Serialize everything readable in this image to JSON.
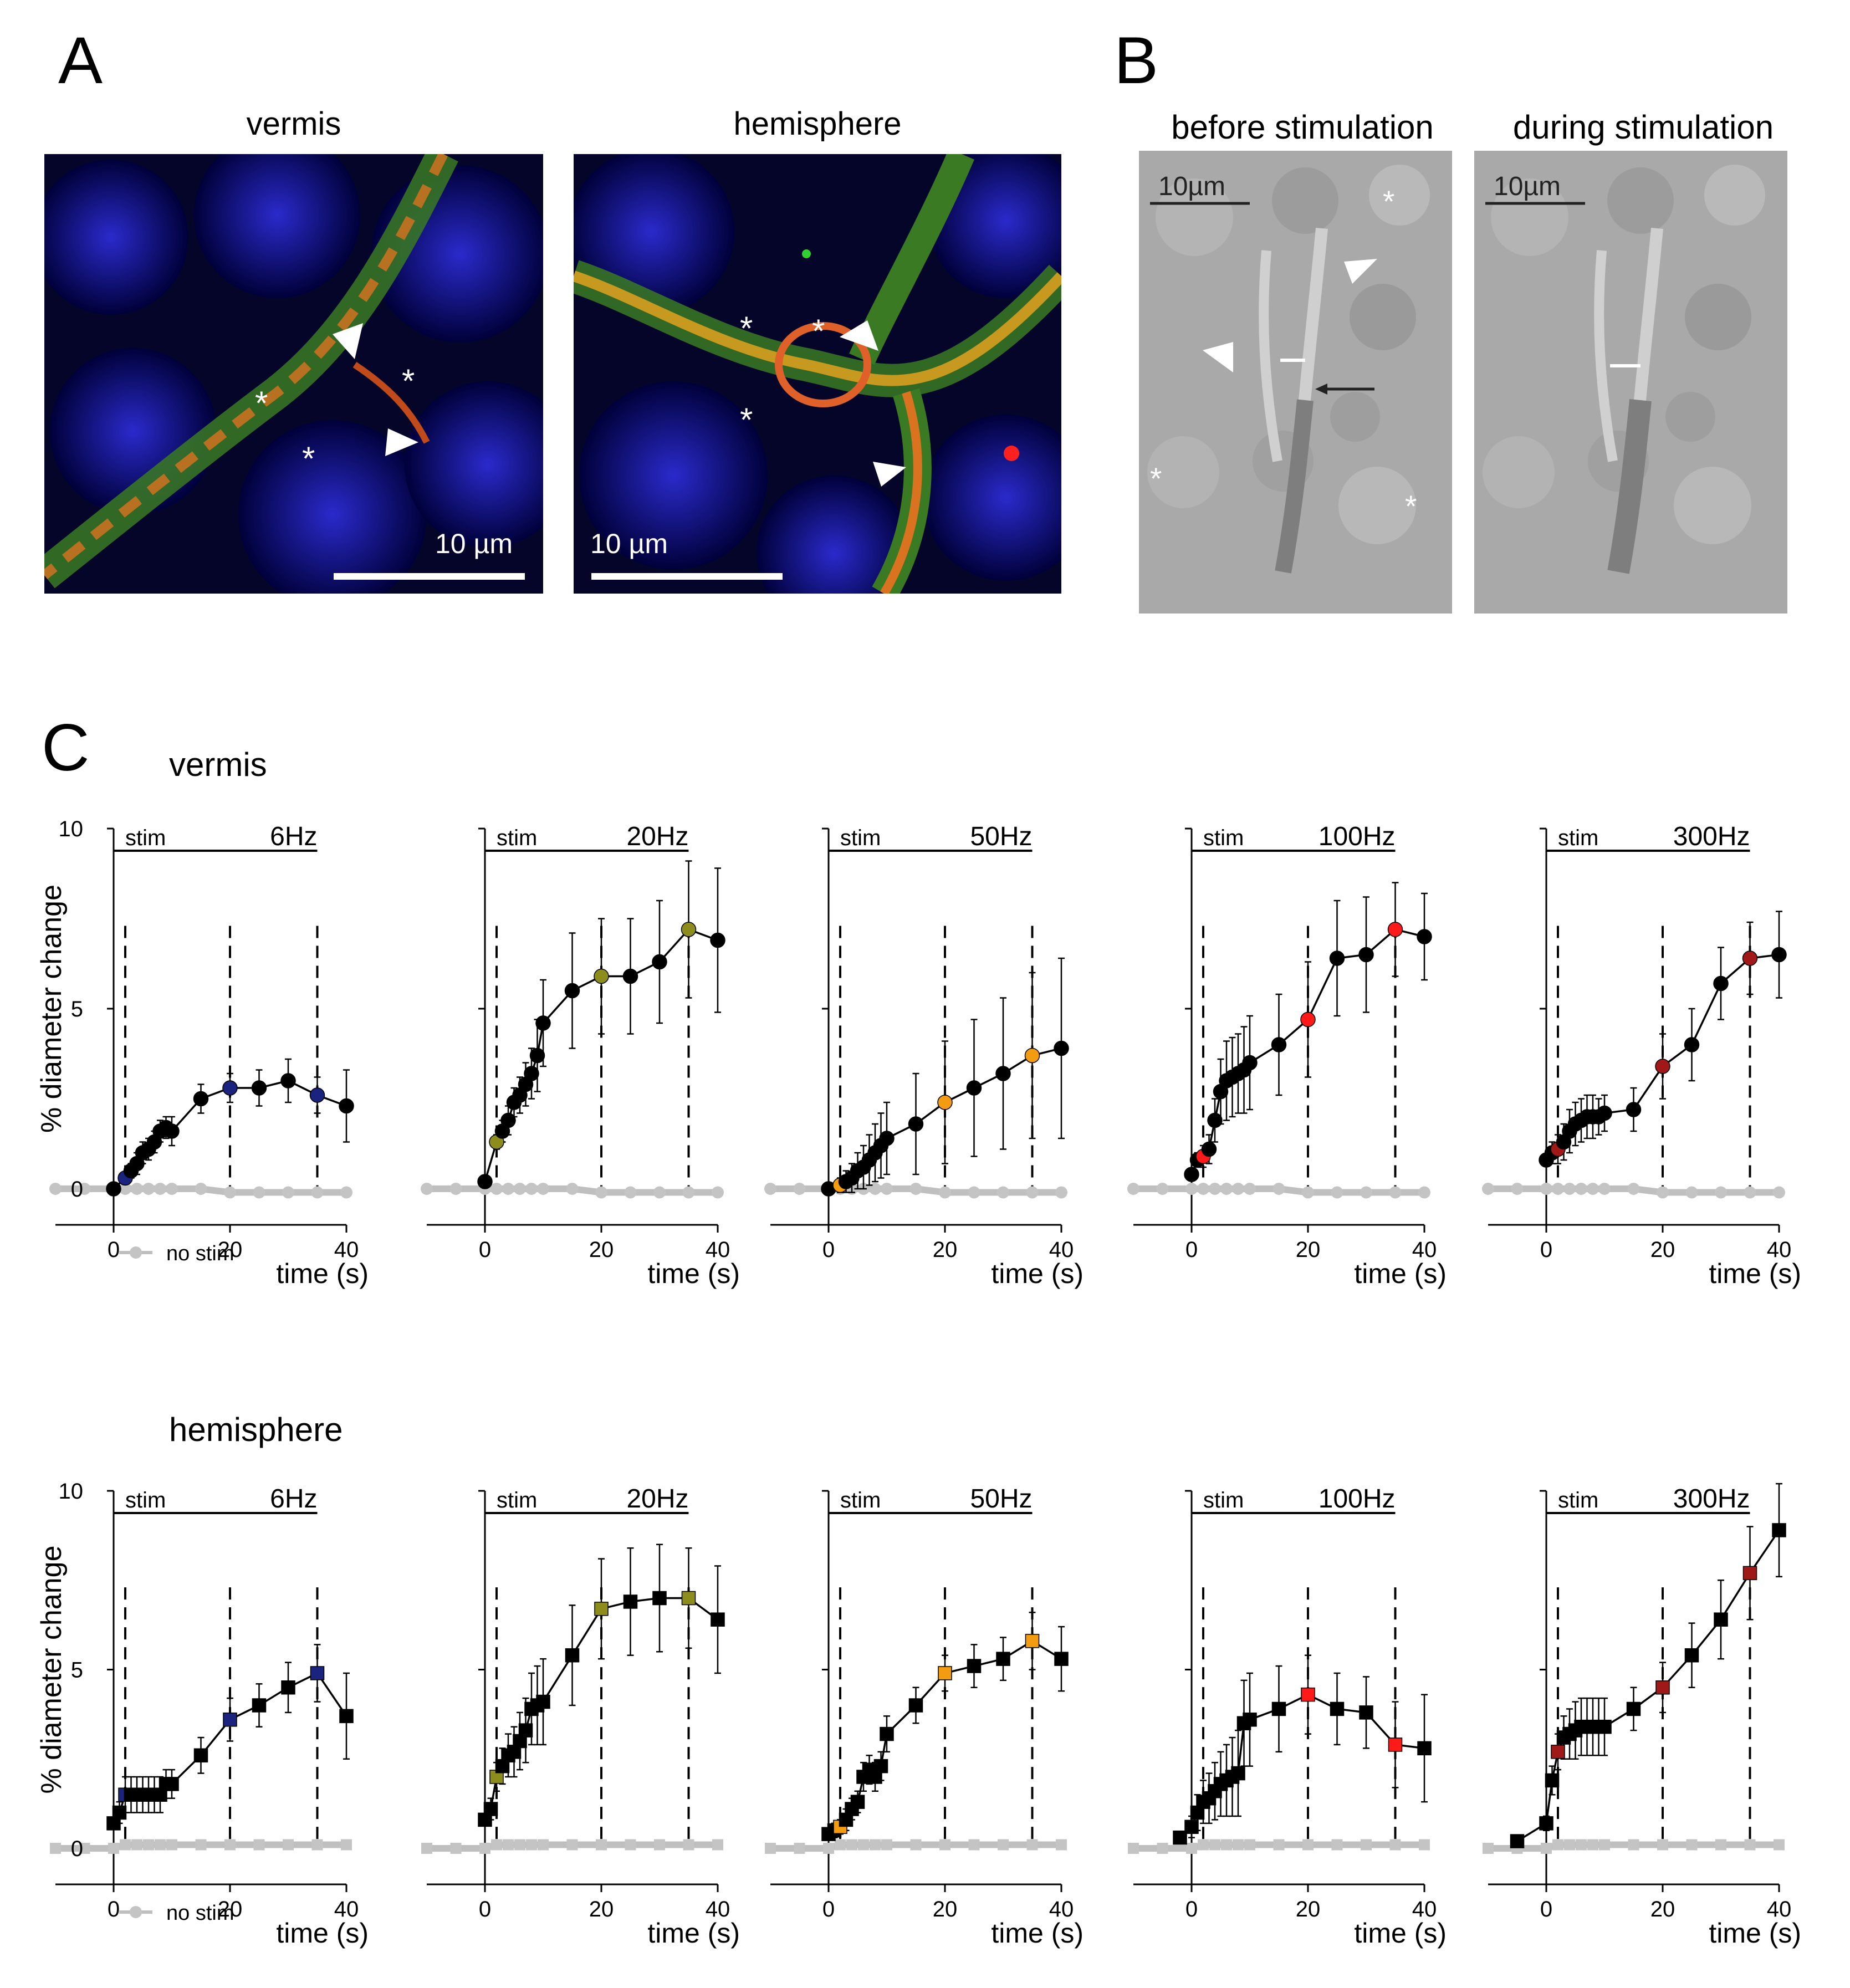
{
  "panel_a": {
    "letter": "A",
    "image_left_title": "vermis",
    "image_right_title": "hemisphere",
    "scale_left": "10 µm",
    "scale_right": "10 µm",
    "asterisk": "*"
  },
  "panel_b": {
    "letter": "B",
    "image_left_title": "before stimulation",
    "image_right_title": "during stimulation",
    "scale_left": "10µm",
    "scale_right": "10µm",
    "asterisk": "*"
  },
  "panel_c": {
    "letter": "C",
    "row_vermis_title": "vermis",
    "row_hemisphere_title": "hemisphere",
    "ylabel": "% diameter change",
    "xlabel": "time (s)",
    "stim_label": "stim",
    "legend_no_stim": "no stim"
  },
  "chart_data": [
    {
      "type": "line",
      "row": "vermis",
      "freq": "6Hz",
      "marker": "circle",
      "highlight": "#1a237e",
      "xlim": [
        -10,
        40
      ],
      "ylim": [
        0,
        10
      ],
      "yticks": [
        0,
        5,
        10
      ],
      "xticks": [
        0,
        20,
        40
      ],
      "stim": {
        "x": [
          0,
          2,
          3,
          4,
          5,
          6,
          7,
          8,
          9,
          10,
          15,
          20,
          25,
          30,
          35,
          40
        ],
        "y": [
          0,
          0.3,
          0.5,
          0.7,
          1.0,
          1.1,
          1.3,
          1.6,
          1.7,
          1.6,
          2.5,
          2.8,
          2.8,
          3.0,
          2.6,
          2.3
        ],
        "err": [
          0,
          0.1,
          0.2,
          0.3,
          0.3,
          0.3,
          0.3,
          0.3,
          0.3,
          0.4,
          0.4,
          0.4,
          0.5,
          0.6,
          0.5,
          1.0
        ],
        "highlight_x": [
          2,
          20,
          35
        ]
      },
      "no_stim": {
        "x": [
          -10,
          -5,
          0,
          2,
          4,
          6,
          8,
          10,
          15,
          20,
          25,
          30,
          35,
          40
        ],
        "y": [
          0,
          0,
          0,
          0,
          0,
          0,
          0,
          0,
          0,
          -0.1,
          -0.1,
          -0.1,
          -0.1,
          -0.1
        ]
      }
    },
    {
      "type": "line",
      "row": "vermis",
      "freq": "20Hz",
      "marker": "circle",
      "highlight": "#8d8d1e",
      "xlim": [
        -10,
        40
      ],
      "ylim": [
        0,
        10
      ],
      "yticks": [
        0,
        5,
        10
      ],
      "xticks": [
        0,
        20,
        40
      ],
      "stim": {
        "x": [
          0,
          2,
          3,
          4,
          5,
          6,
          7,
          8,
          9,
          10,
          15,
          20,
          25,
          30,
          35,
          40
        ],
        "y": [
          0.2,
          1.3,
          1.6,
          1.9,
          2.4,
          2.6,
          2.9,
          3.2,
          3.7,
          4.6,
          5.5,
          5.9,
          5.9,
          6.3,
          7.2,
          6.9
        ],
        "err": [
          0,
          0.2,
          0.3,
          0.4,
          0.4,
          0.5,
          0.6,
          0.7,
          1.0,
          1.2,
          1.6,
          1.6,
          1.6,
          1.7,
          1.9,
          2.0
        ],
        "highlight_x": [
          2,
          20,
          35
        ]
      },
      "no_stim": {
        "x": [
          -10,
          -5,
          0,
          2,
          4,
          6,
          8,
          10,
          15,
          20,
          25,
          30,
          35,
          40
        ],
        "y": [
          0,
          0,
          0,
          0,
          0,
          0,
          0,
          0,
          0,
          -0.1,
          -0.1,
          -0.1,
          -0.1,
          -0.1
        ]
      }
    },
    {
      "type": "line",
      "row": "vermis",
      "freq": "50Hz",
      "marker": "circle",
      "highlight": "#f39c12",
      "xlim": [
        -10,
        40
      ],
      "ylim": [
        0,
        10
      ],
      "yticks": [
        0,
        5,
        10
      ],
      "xticks": [
        0,
        20,
        40
      ],
      "stim": {
        "x": [
          0,
          2,
          3,
          4,
          5,
          6,
          7,
          8,
          9,
          10,
          15,
          20,
          25,
          30,
          35,
          40
        ],
        "y": [
          0,
          0.1,
          0.2,
          0.3,
          0.5,
          0.6,
          0.8,
          1.0,
          1.2,
          1.4,
          1.8,
          2.4,
          2.8,
          3.2,
          3.7,
          3.9
        ],
        "err": [
          0,
          0.2,
          0.3,
          0.4,
          0.5,
          0.6,
          0.7,
          0.8,
          0.9,
          1.0,
          1.4,
          1.7,
          1.9,
          2.1,
          2.3,
          2.5
        ],
        "highlight_x": [
          2,
          20,
          35
        ]
      },
      "no_stim": {
        "x": [
          -10,
          -5,
          0,
          2,
          4,
          6,
          8,
          10,
          15,
          20,
          25,
          30,
          35,
          40
        ],
        "y": [
          0,
          0,
          0,
          0,
          0,
          0,
          0,
          0,
          0,
          -0.1,
          -0.1,
          -0.1,
          -0.1,
          -0.1
        ]
      }
    },
    {
      "type": "line",
      "row": "vermis",
      "freq": "100Hz",
      "marker": "circle",
      "highlight": "#ff1a1a",
      "xlim": [
        -10,
        40
      ],
      "ylim": [
        0,
        10
      ],
      "yticks": [
        0,
        5,
        10
      ],
      "xticks": [
        0,
        20,
        40
      ],
      "stim": {
        "x": [
          0,
          1,
          2,
          3,
          4,
          5,
          6,
          7,
          8,
          9,
          10,
          15,
          20,
          25,
          30,
          35,
          40
        ],
        "y": [
          0.4,
          0.8,
          0.9,
          1.1,
          1.9,
          2.7,
          3.0,
          3.1,
          3.2,
          3.3,
          3.5,
          4.0,
          4.7,
          6.4,
          6.5,
          7.2,
          7.0
        ],
        "err": [
          0,
          0.2,
          0.3,
          0.4,
          0.6,
          0.9,
          1.1,
          1.1,
          1.1,
          1.2,
          1.3,
          1.4,
          1.6,
          1.6,
          1.6,
          1.3,
          1.2
        ],
        "highlight_x": [
          2,
          20,
          35
        ]
      },
      "no_stim": {
        "x": [
          -10,
          -5,
          0,
          2,
          4,
          6,
          8,
          10,
          15,
          20,
          25,
          30,
          35,
          40
        ],
        "y": [
          0,
          0,
          0,
          0,
          0,
          0,
          0,
          0,
          0,
          -0.1,
          -0.1,
          -0.1,
          -0.1,
          -0.1
        ]
      }
    },
    {
      "type": "line",
      "row": "vermis",
      "freq": "300Hz",
      "marker": "circle",
      "highlight": "#a01818",
      "xlim": [
        -10,
        40
      ],
      "ylim": [
        0,
        10
      ],
      "yticks": [
        0,
        5,
        10
      ],
      "xticks": [
        0,
        20,
        40
      ],
      "stim": {
        "x": [
          0,
          1,
          2,
          3,
          4,
          5,
          6,
          7,
          8,
          9,
          10,
          15,
          20,
          25,
          30,
          35,
          40
        ],
        "y": [
          0.8,
          1.0,
          1.1,
          1.3,
          1.6,
          1.8,
          1.9,
          2.0,
          2.0,
          2.0,
          2.1,
          2.2,
          3.4,
          4.0,
          5.7,
          6.4,
          6.5
        ],
        "err": [
          0,
          0.3,
          0.4,
          0.5,
          0.6,
          0.6,
          0.6,
          0.6,
          0.6,
          0.5,
          0.5,
          0.6,
          0.9,
          1.0,
          1.0,
          1.0,
          1.2
        ],
        "highlight_x": [
          2,
          20,
          35
        ]
      },
      "no_stim": {
        "x": [
          -10,
          -5,
          0,
          2,
          4,
          6,
          8,
          10,
          15,
          20,
          25,
          30,
          35,
          40
        ],
        "y": [
          0,
          0,
          0,
          0,
          0,
          0,
          0,
          0,
          0,
          -0.1,
          -0.1,
          -0.1,
          -0.1,
          -0.1
        ]
      }
    },
    {
      "type": "line",
      "row": "hemisphere",
      "freq": "6Hz",
      "marker": "square",
      "highlight": "#1a237e",
      "xlim": [
        -10,
        40
      ],
      "ylim": [
        0,
        10
      ],
      "yticks": [
        0,
        5,
        10
      ],
      "xticks": [
        0,
        20,
        40
      ],
      "stim": {
        "x": [
          0,
          1,
          2,
          3,
          4,
          5,
          6,
          7,
          8,
          9,
          10,
          15,
          20,
          25,
          30,
          35,
          40
        ],
        "y": [
          0.7,
          1.0,
          1.5,
          1.5,
          1.5,
          1.5,
          1.5,
          1.5,
          1.5,
          1.8,
          1.8,
          2.6,
          3.6,
          4.0,
          4.5,
          4.9,
          3.7
        ],
        "err": [
          0,
          0.3,
          0.5,
          0.5,
          0.5,
          0.5,
          0.5,
          0.5,
          0.5,
          0.4,
          0.4,
          0.5,
          0.6,
          0.6,
          0.7,
          0.8,
          1.2
        ],
        "highlight_x": [
          2,
          20,
          35
        ]
      },
      "no_stim": {
        "x": [
          -10,
          -5,
          0,
          2,
          4,
          6,
          8,
          10,
          15,
          20,
          25,
          30,
          35,
          40
        ],
        "y": [
          0,
          0,
          0,
          0.1,
          0.1,
          0.1,
          0.1,
          0.1,
          0.1,
          0.1,
          0.1,
          0.1,
          0.1,
          0.1
        ]
      }
    },
    {
      "type": "line",
      "row": "hemisphere",
      "freq": "20Hz",
      "marker": "square",
      "highlight": "#8d8d1e",
      "xlim": [
        -10,
        40
      ],
      "ylim": [
        0,
        10
      ],
      "yticks": [
        0,
        5,
        10
      ],
      "xticks": [
        0,
        20,
        40
      ],
      "stim": {
        "x": [
          0,
          1,
          2,
          3,
          4,
          5,
          6,
          7,
          8,
          9,
          10,
          15,
          20,
          25,
          30,
          35,
          40
        ],
        "y": [
          0.8,
          1.1,
          2.0,
          2.3,
          2.6,
          2.7,
          3.0,
          3.3,
          3.9,
          4.0,
          4.1,
          5.4,
          6.7,
          6.9,
          7.0,
          7.0,
          6.4
        ],
        "err": [
          0,
          0.3,
          0.4,
          0.5,
          0.6,
          0.7,
          0.8,
          0.9,
          1.0,
          1.1,
          1.2,
          1.4,
          1.4,
          1.5,
          1.5,
          1.4,
          1.5
        ],
        "highlight_x": [
          2,
          20,
          35
        ]
      },
      "no_stim": {
        "x": [
          -10,
          -5,
          0,
          2,
          4,
          6,
          8,
          10,
          15,
          20,
          25,
          30,
          35,
          40
        ],
        "y": [
          0,
          0,
          0,
          0.1,
          0.1,
          0.1,
          0.1,
          0.1,
          0.1,
          0.1,
          0.1,
          0.1,
          0.1,
          0.1
        ]
      }
    },
    {
      "type": "line",
      "row": "hemisphere",
      "freq": "50Hz",
      "marker": "square",
      "highlight": "#f39c12",
      "xlim": [
        -10,
        40
      ],
      "ylim": [
        0,
        10
      ],
      "yticks": [
        0,
        5,
        10
      ],
      "xticks": [
        0,
        20,
        40
      ],
      "stim": {
        "x": [
          0,
          1,
          2,
          3,
          4,
          5,
          6,
          7,
          8,
          9,
          10,
          15,
          20,
          25,
          30,
          35,
          40
        ],
        "y": [
          0.4,
          0.5,
          0.6,
          0.8,
          1.1,
          1.3,
          2.0,
          2.2,
          2.0,
          2.3,
          3.2,
          4.0,
          4.9,
          5.1,
          5.3,
          5.8,
          5.3
        ],
        "err": [
          0,
          0.2,
          0.2,
          0.3,
          0.3,
          0.3,
          0.4,
          0.4,
          0.4,
          0.4,
          0.5,
          0.5,
          0.5,
          0.6,
          0.6,
          0.8,
          0.9
        ],
        "highlight_x": [
          2,
          20,
          35
        ]
      },
      "no_stim": {
        "x": [
          -10,
          -5,
          0,
          2,
          4,
          6,
          8,
          10,
          15,
          20,
          25,
          30,
          35,
          40
        ],
        "y": [
          0,
          0,
          0,
          0.1,
          0.1,
          0.1,
          0.1,
          0.1,
          0.1,
          0.1,
          0.1,
          0.1,
          0.1,
          0.1
        ]
      }
    },
    {
      "type": "line",
      "row": "hemisphere",
      "freq": "100Hz",
      "marker": "square",
      "highlight": "#ff1a1a",
      "xlim": [
        -10,
        40
      ],
      "ylim": [
        0,
        10
      ],
      "yticks": [
        0,
        5,
        10
      ],
      "xticks": [
        0,
        20,
        40
      ],
      "stim": {
        "x": [
          -2,
          0,
          1,
          2,
          3,
          4,
          5,
          6,
          7,
          8,
          9,
          10,
          15,
          20,
          25,
          30,
          35,
          40
        ],
        "y": [
          0.3,
          0.6,
          1.0,
          1.3,
          1.4,
          1.6,
          1.8,
          1.9,
          2.0,
          2.1,
          3.5,
          3.6,
          3.9,
          4.3,
          3.9,
          3.8,
          2.9,
          2.8
        ],
        "err": [
          0,
          0.3,
          0.5,
          0.6,
          0.7,
          0.8,
          0.9,
          1.0,
          1.1,
          1.2,
          1.2,
          1.3,
          1.2,
          1.1,
          1.0,
          1.0,
          1.2,
          1.5
        ],
        "highlight_x": [
          20,
          35
        ]
      },
      "no_stim": {
        "x": [
          -10,
          -5,
          0,
          2,
          4,
          6,
          8,
          10,
          15,
          20,
          25,
          30,
          35,
          40
        ],
        "y": [
          0,
          0,
          0,
          0.1,
          0.1,
          0.1,
          0.1,
          0.1,
          0.1,
          0.1,
          0.1,
          0.1,
          0.1,
          0.1
        ]
      }
    },
    {
      "type": "line",
      "row": "hemisphere",
      "freq": "300Hz",
      "marker": "square",
      "highlight": "#a01818",
      "xlim": [
        -10,
        40
      ],
      "ylim": [
        0,
        10
      ],
      "yticks": [
        0,
        5,
        10
      ],
      "xticks": [
        0,
        20,
        40
      ],
      "stim": {
        "x": [
          -5,
          0,
          1,
          2,
          3,
          4,
          5,
          6,
          7,
          8,
          9,
          10,
          15,
          20,
          25,
          30,
          35,
          40
        ],
        "y": [
          0.2,
          0.7,
          1.9,
          2.7,
          3.1,
          3.2,
          3.3,
          3.4,
          3.4,
          3.4,
          3.4,
          3.4,
          3.9,
          4.5,
          5.4,
          6.4,
          7.7,
          8.9
        ],
        "err": [
          0,
          0.2,
          0.4,
          0.5,
          0.6,
          0.7,
          0.8,
          0.8,
          0.8,
          0.8,
          0.8,
          0.8,
          0.6,
          0.7,
          0.9,
          1.1,
          1.3,
          1.3
        ],
        "highlight_x": [
          2,
          20,
          35
        ]
      },
      "no_stim": {
        "x": [
          -10,
          -5,
          0,
          2,
          4,
          6,
          8,
          10,
          15,
          20,
          25,
          30,
          35,
          40
        ],
        "y": [
          0,
          0,
          0,
          0.1,
          0.1,
          0.1,
          0.1,
          0.1,
          0.1,
          0.1,
          0.1,
          0.1,
          0.1,
          0.1
        ]
      }
    }
  ]
}
